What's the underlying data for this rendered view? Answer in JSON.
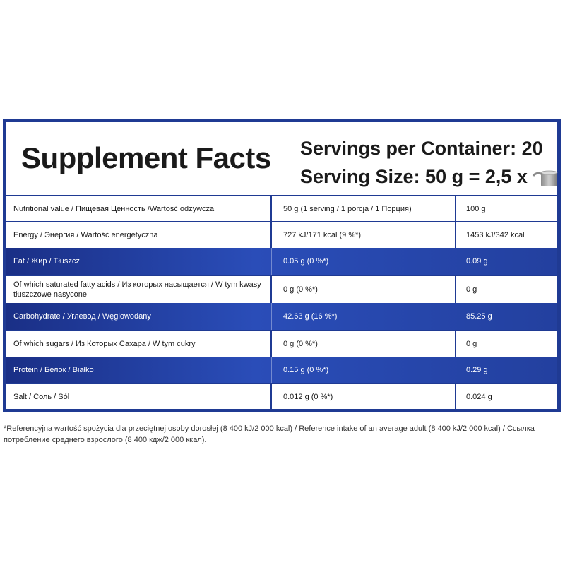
{
  "header": {
    "title": "Supplement Facts",
    "servings_per_container": "Servings per Container: 20",
    "serving_size": "Serving Size: 50 g = 2,5 x",
    "scoop_icon": "scoop-icon"
  },
  "rows": [
    {
      "label": "Nutritional value / Пищевая Ценность /Wartość odżywcza",
      "per_serving": "50 g (1 serving / 1 porcja / 1 Порция)",
      "per_100g": "100 g"
    },
    {
      "label": "Energy / Энергия / Wartość energetyczna",
      "per_serving": "727 kJ/171 kcal (9 %*)",
      "per_100g": "1453 kJ/342 kcal"
    },
    {
      "label": "Fat / Жир / Tłuszcz",
      "per_serving": "0.05 g (0 %*)",
      "per_100g": "0.09 g"
    },
    {
      "label": "Of which saturated fatty acids / Из которых насыщается / W tym kwasy tłuszczowe nasycone",
      "per_serving": "0 g (0 %*)",
      "per_100g": "0 g"
    },
    {
      "label": "Carbohydrate / Углевод / Węglowodany",
      "per_serving": "42.63 g (16 %*)",
      "per_100g": "85.25 g"
    },
    {
      "label": "Of which sugars / Из Которых Сахара / W tym cukry",
      "per_serving": "0 g (0 %*)",
      "per_100g": "0 g"
    },
    {
      "label": "Protein / Белок / Białko",
      "per_serving": "0.15 g (0 %*)",
      "per_100g": "0.29 g"
    },
    {
      "label": "Salt / Соль / Sól",
      "per_serving": "0.012 g (0 %*)",
      "per_100g": "0.024 g"
    }
  ],
  "footnote": "*Referencyjna wartość spożycia dla przeciętnej osoby dorosłej (8 400 kJ/2 000 kcal) / Reference intake of an average adult (8 400 kJ/2 000 kcal) / Ссылка потребление среднего взрослого (8 400 кдж/2 000 ккал).",
  "colors": {
    "accent": "#1f3a93",
    "band_dark": "#1a2f86",
    "band_light": "#2a4db8"
  }
}
